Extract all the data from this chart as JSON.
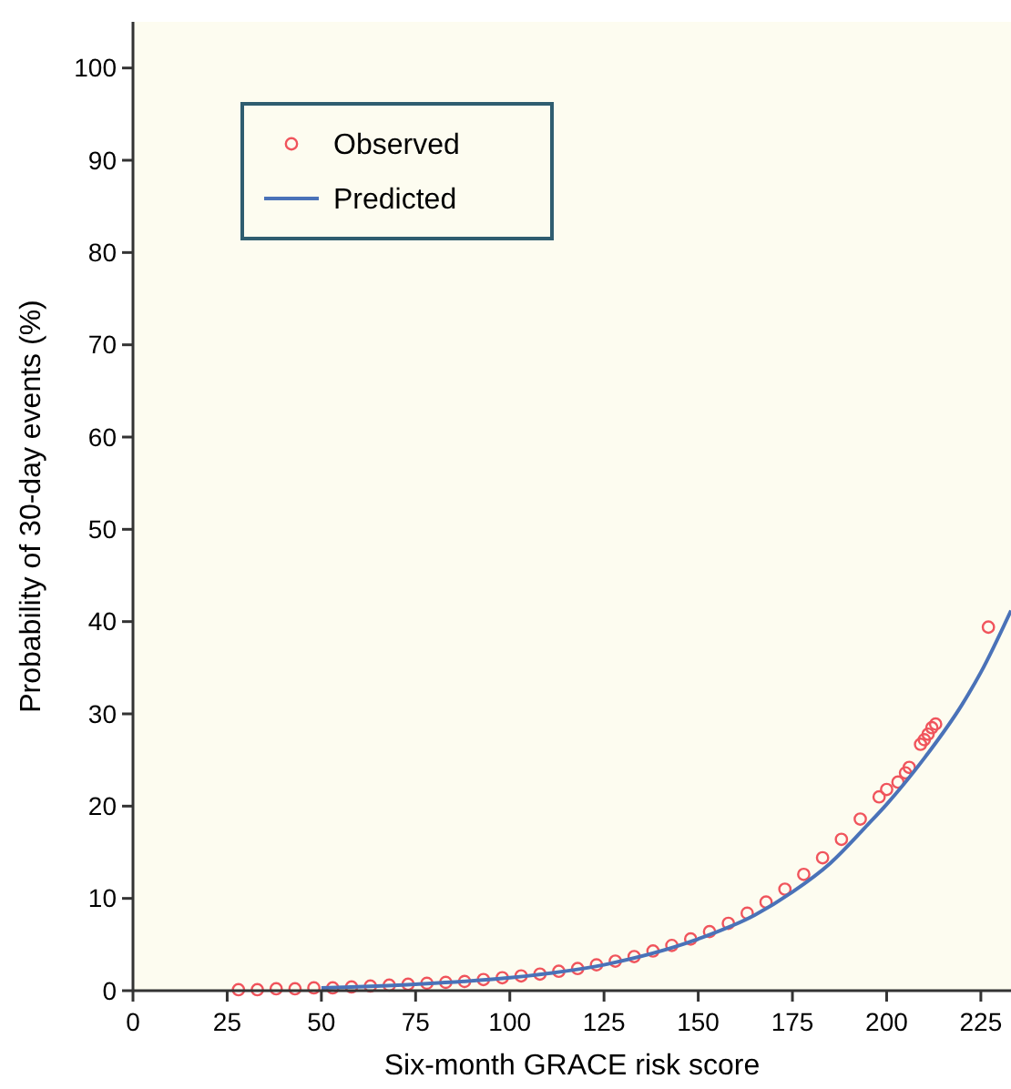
{
  "chart_data": {
    "type": "scatter",
    "xlabel": "Six-month GRACE risk score",
    "ylabel": "Probability of 30-day events (%)",
    "xlim": [
      0,
      233
    ],
    "ylim": [
      0,
      105
    ],
    "xticks": [
      0,
      25,
      50,
      75,
      100,
      125,
      150,
      175,
      200,
      225
    ],
    "yticks": [
      0,
      10,
      20,
      30,
      40,
      50,
      60,
      70,
      80,
      90,
      100
    ],
    "grid": false,
    "legend": "top left",
    "series": [
      {
        "name": "Observed",
        "color": "#f0545c",
        "marker": "circle",
        "x": [
          28,
          33,
          38,
          43,
          48,
          53,
          58,
          63,
          68,
          73,
          78,
          83,
          88,
          93,
          98,
          103,
          108,
          113,
          118,
          123,
          128,
          133,
          138,
          143,
          148,
          153,
          158,
          163,
          168,
          173,
          178,
          183,
          188,
          193,
          198,
          200,
          203,
          205,
          206,
          209,
          210,
          211,
          212,
          213,
          227
        ],
        "values": [
          0.1,
          0.1,
          0.2,
          0.2,
          0.3,
          0.3,
          0.4,
          0.5,
          0.6,
          0.7,
          0.8,
          0.9,
          1.0,
          1.2,
          1.4,
          1.6,
          1.8,
          2.1,
          2.4,
          2.8,
          3.2,
          3.7,
          4.3,
          4.9,
          5.6,
          6.4,
          7.3,
          8.4,
          9.6,
          11,
          12.6,
          14.4,
          16.4,
          18.6,
          21,
          21.8,
          22.6,
          23.6,
          24.2,
          26.7,
          27.2,
          27.8,
          28.5,
          28.9,
          39.4
        ]
      },
      {
        "name": "Predicted",
        "type": "line",
        "color": "#4a72b8",
        "line_style": "solid",
        "x": [
          50,
          75,
          100,
          125,
          150,
          165,
          175,
          185,
          195,
          200,
          210,
          220,
          225,
          233
        ],
        "values": [
          0.3,
          0.7,
          1.4,
          2.8,
          5.6,
          8.2,
          10.7,
          13.8,
          18,
          20.2,
          25.2,
          31,
          34.5,
          41.2
        ]
      }
    ]
  }
}
